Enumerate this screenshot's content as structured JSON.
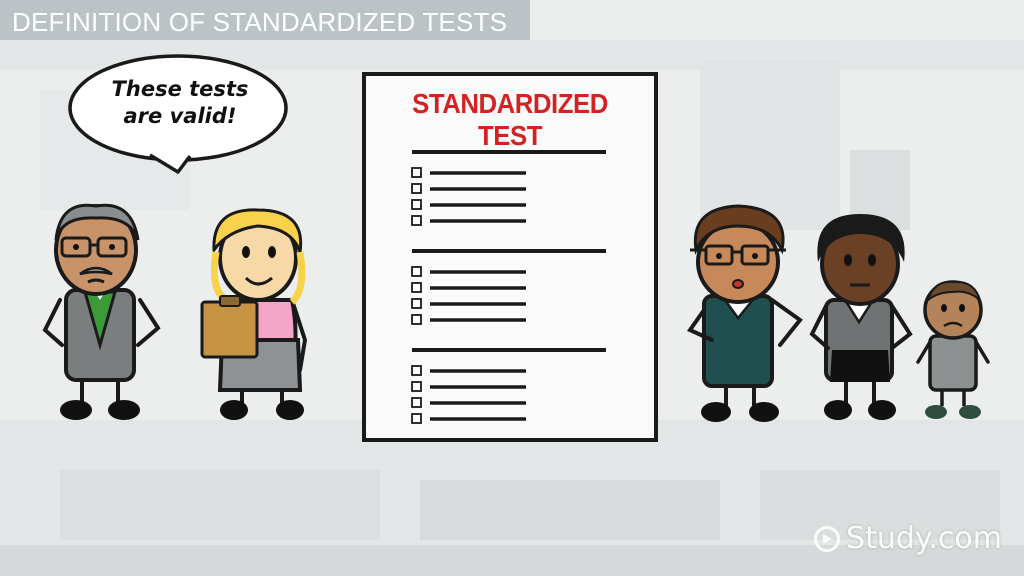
{
  "header": {
    "title": "DEFINITION OF STANDARDIZED TESTS"
  },
  "speech_bubble": {
    "line1": "These tests",
    "line2": "are valid!"
  },
  "test_paper": {
    "title": "STANDARDIZED TEST",
    "sections": [
      {
        "items": 4
      },
      {
        "items": 4
      },
      {
        "items": 4
      }
    ]
  },
  "watermark": {
    "text": "Study.com"
  },
  "colors": {
    "title_red": "#d42222",
    "background": "#eceeee",
    "title_bar": "#9aa3a8"
  }
}
